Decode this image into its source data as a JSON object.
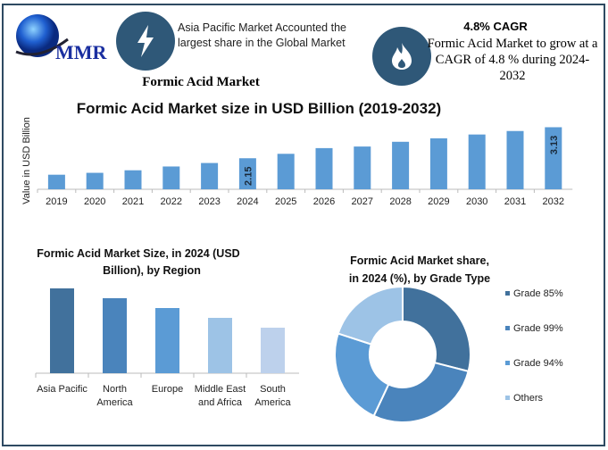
{
  "header": {
    "logo_text": "MMR",
    "highlight_text": "Asia Pacific Market Accounted the largest share in the Global Market",
    "subtitle": "Formic Acid Market",
    "cagr_title": "4.8% CAGR",
    "cagr_text": "Formic Acid Market to grow at a CAGR of 4.8 % during 2024-2032",
    "icons": [
      "globe-logo-icon",
      "lightning-icon",
      "flame-icon"
    ]
  },
  "colors": {
    "frame": "#2e4a62",
    "icon_circle": "#2f5878",
    "bar": "#5b9bd5"
  },
  "chart_data": [
    {
      "type": "bar",
      "title": "Formic Acid Market size in USD Billion (2019-2032)",
      "ylabel": "Value in USD Billion",
      "xlabel": "",
      "categories": [
        "2019",
        "2020",
        "2021",
        "2022",
        "2023",
        "2024",
        "2025",
        "2026",
        "2027",
        "2028",
        "2029",
        "2030",
        "2031",
        "2032"
      ],
      "values": [
        1.63,
        1.69,
        1.77,
        1.89,
        2.0,
        2.15,
        2.29,
        2.47,
        2.52,
        2.67,
        2.78,
        2.9,
        3.01,
        3.13
      ],
      "data_labels": {
        "2024": "2.15",
        "2032": "3.13"
      },
      "ylim": [
        1.17,
        3.2
      ],
      "grid": false
    },
    {
      "type": "bar",
      "title": "Formic Acid Market  Size, in 2024 (USD Billion), by Region",
      "categories": [
        "Asia Pacific",
        "North America",
        "Europe",
        "Middle East and Africa",
        "South America"
      ],
      "category_lines": [
        [
          "Asia Pacific"
        ],
        [
          "North",
          "America"
        ],
        [
          "Europe"
        ],
        [
          "Middle East",
          "and Africa"
        ],
        [
          "South",
          "America"
        ]
      ],
      "values": [
        0.95,
        0.84,
        0.73,
        0.62,
        0.51
      ],
      "colors": [
        "#41719c",
        "#4a84bc",
        "#5b9bd5",
        "#9dc3e6",
        "#bdd1ec"
      ],
      "ylim": [
        0,
        1
      ]
    },
    {
      "type": "pie",
      "donut": true,
      "title": "Formic Acid Market share, in 2024 (%), by Grade Type",
      "title_lines": [
        "Formic Acid Market share,",
        "in 2024 (%), by Grade Type"
      ],
      "labels": [
        "Grade 85%",
        "Grade 99%",
        "Grade 94%",
        "Others"
      ],
      "values": [
        29,
        28,
        23,
        20
      ],
      "colors": [
        "#41719c",
        "#4a84bc",
        "#5b9bd5",
        "#9dc3e6"
      ],
      "legend": "right"
    }
  ]
}
